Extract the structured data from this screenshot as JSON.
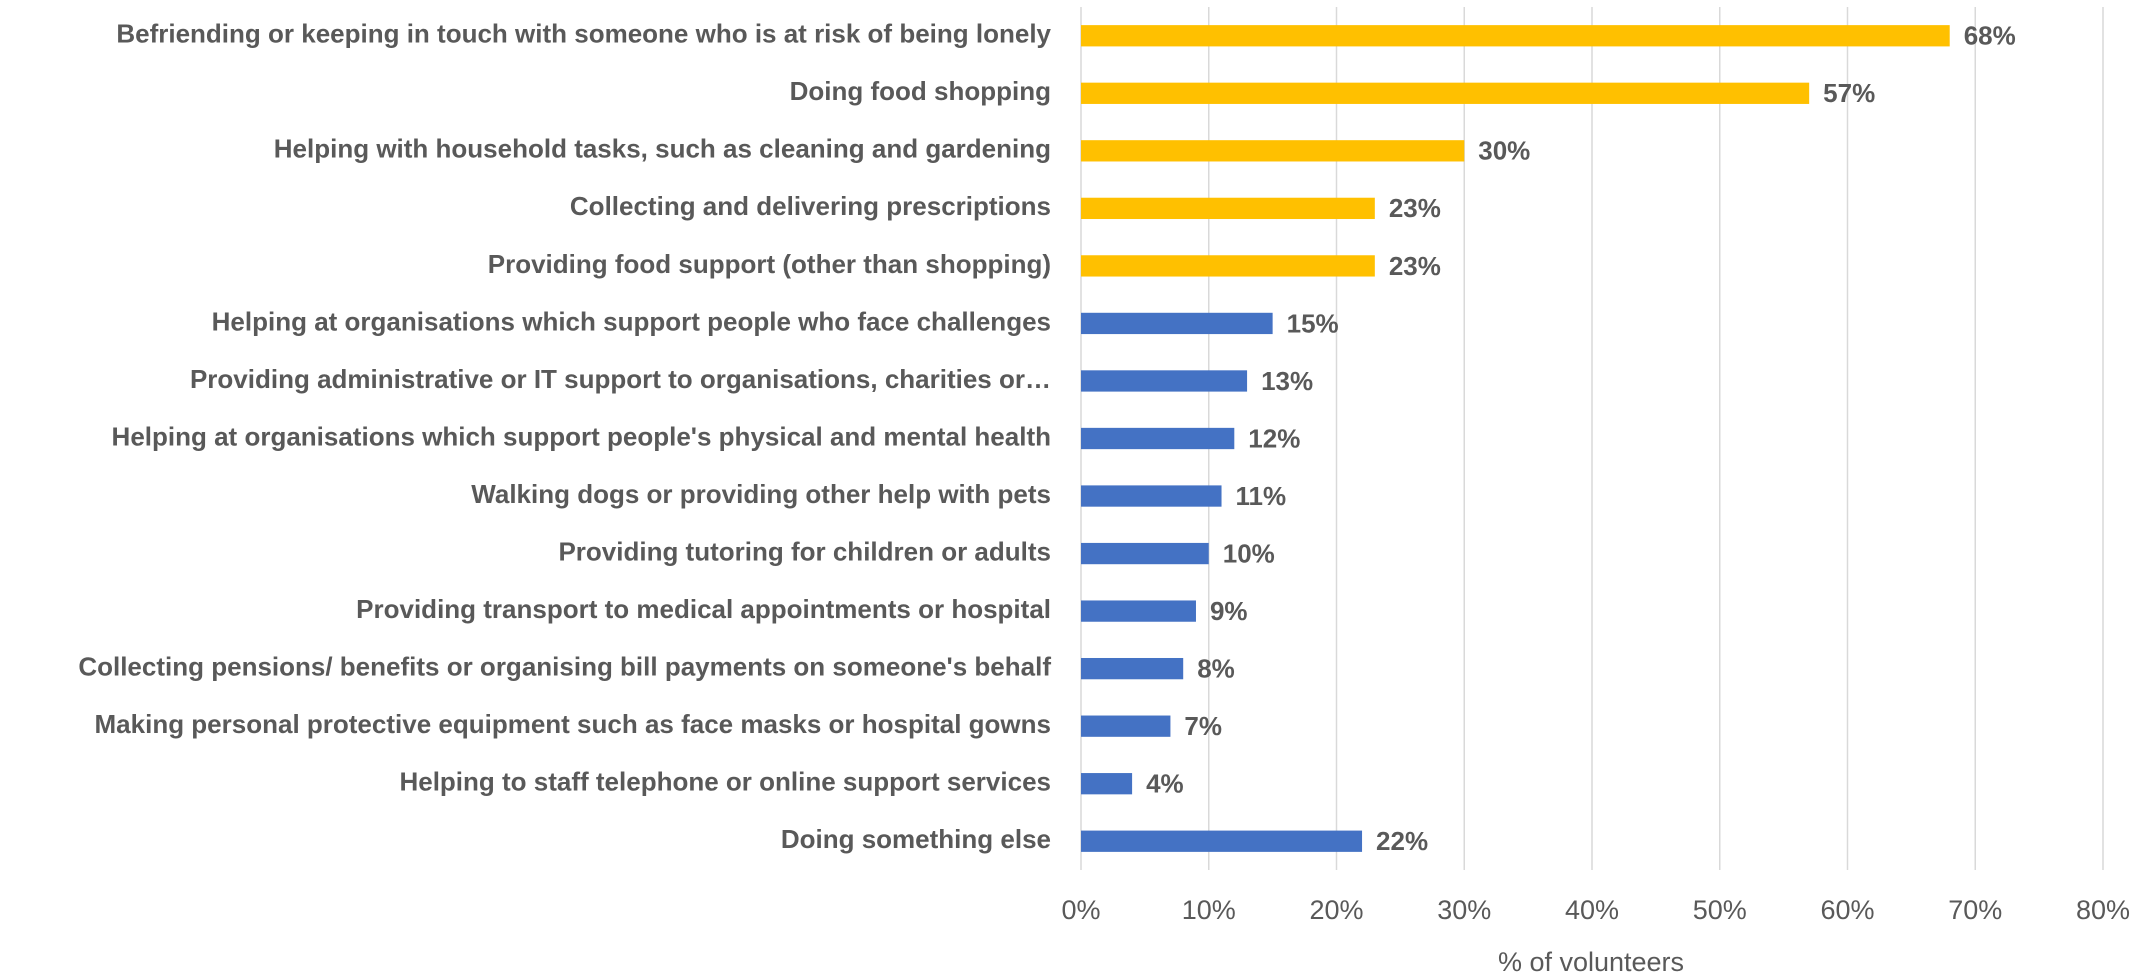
{
  "chart_data": {
    "type": "barh",
    "xlabel": "% of volunteers",
    "categories": [
      "Befriending or keeping in touch with someone who is at risk of being lonely",
      "Doing food shopping",
      "Helping with household tasks, such as cleaning and gardening",
      "Collecting and delivering prescriptions",
      "Providing food support (other than shopping)",
      "Helping at organisations which support people who face challenges",
      "Providing administrative or IT support to organisations, charities or…",
      "Helping at organisations which support people's physical and mental health",
      "Walking dogs or providing other help with pets",
      "Providing tutoring for children or adults",
      "Providing transport to medical appointments or hospital",
      "Collecting pensions/ benefits or organising bill payments on someone's behalf",
      "Making personal protective equipment such as face masks or hospital gowns",
      "Helping to staff telephone or online support services",
      "Doing something else"
    ],
    "values": [
      68,
      57,
      30,
      23,
      23,
      15,
      13,
      12,
      11,
      10,
      9,
      8,
      7,
      4,
      22
    ],
    "value_labels": [
      "68%",
      "57%",
      "30%",
      "23%",
      "23%",
      "15%",
      "13%",
      "12%",
      "11%",
      "10%",
      "9%",
      "8%",
      "7%",
      "4%",
      "22%"
    ],
    "colors": [
      "#ffc000",
      "#ffc000",
      "#ffc000",
      "#ffc000",
      "#ffc000",
      "#4472c4",
      "#4472c4",
      "#4472c4",
      "#4472c4",
      "#4472c4",
      "#4472c4",
      "#4472c4",
      "#4472c4",
      "#4472c4",
      "#4472c4"
    ],
    "xlim": [
      0,
      80
    ],
    "xticks": [
      {
        "value": 0,
        "label": "0%"
      },
      {
        "value": 10,
        "label": "10%"
      },
      {
        "value": 20,
        "label": "20%"
      },
      {
        "value": 30,
        "label": "30%"
      },
      {
        "value": 40,
        "label": "40%"
      },
      {
        "value": 50,
        "label": "50%"
      },
      {
        "value": 60,
        "label": "60%"
      },
      {
        "value": 70,
        "label": "70%"
      },
      {
        "value": 80,
        "label": "80%"
      }
    ],
    "grid": true
  }
}
